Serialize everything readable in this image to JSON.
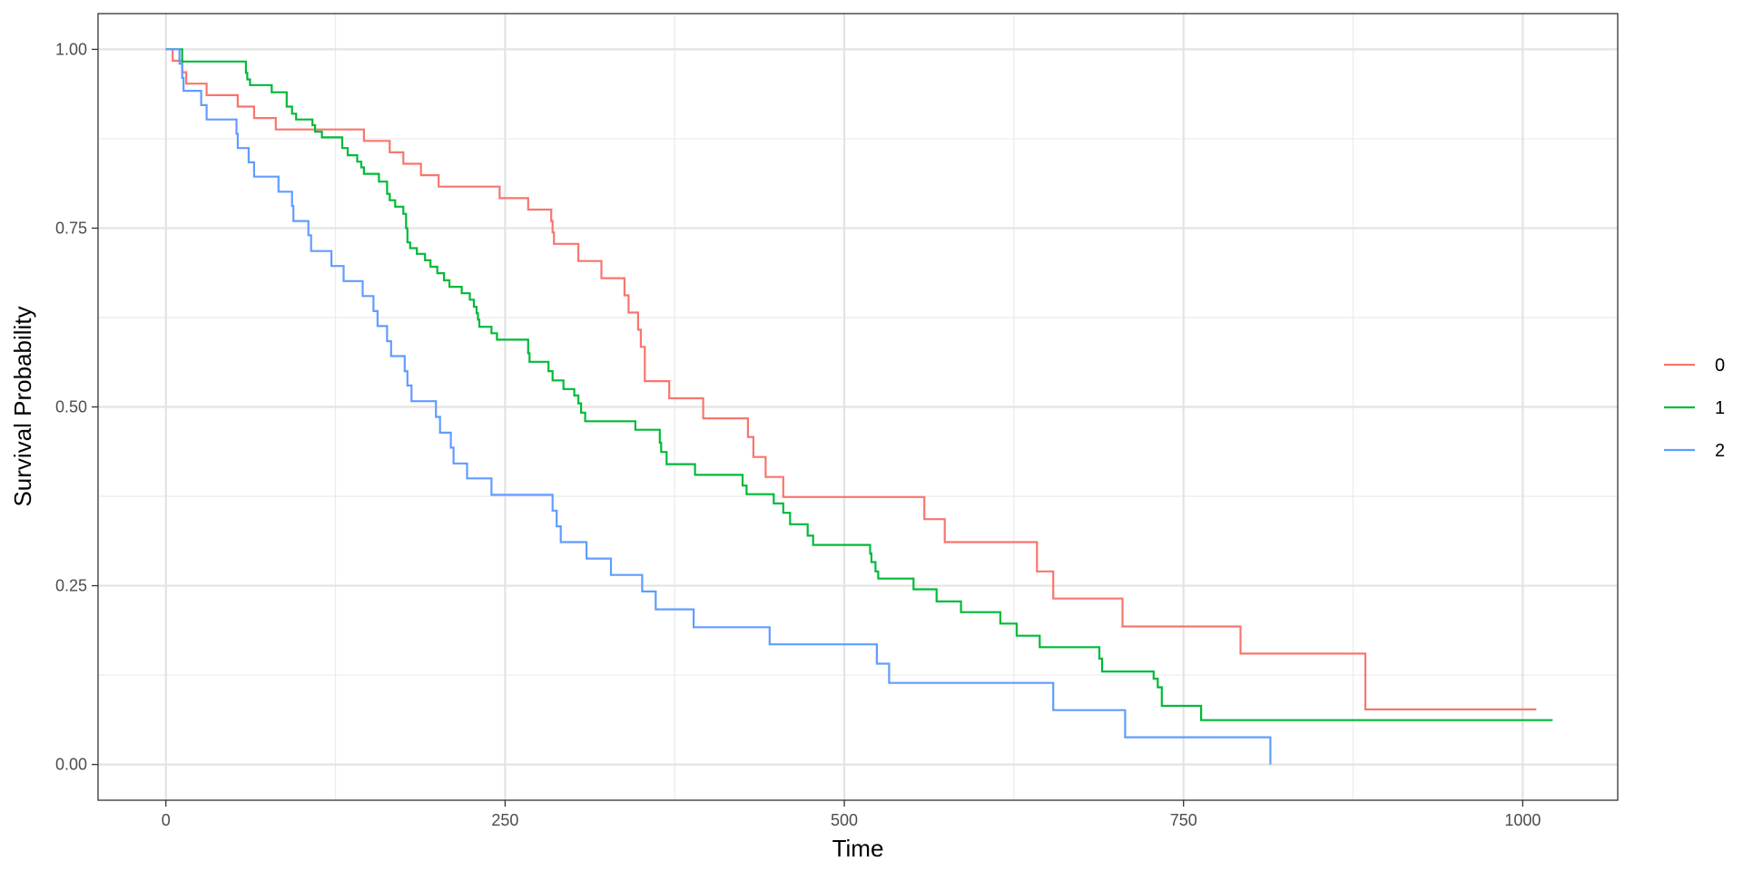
{
  "chart_data": {
    "type": "line",
    "subtype": "step",
    "title": "",
    "xlabel": "Time",
    "ylabel": "Survival Probability",
    "xlim": [
      -50,
      1070
    ],
    "ylim": [
      -0.05,
      1.05
    ],
    "x_ticks": [
      0,
      250,
      500,
      750,
      1000
    ],
    "x_tick_labels": [
      "0",
      "250",
      "500",
      "750",
      "1000"
    ],
    "y_ticks": [
      0,
      0.25,
      0.5,
      0.75,
      1
    ],
    "y_tick_labels": [
      "0.00",
      "0.25",
      "0.50",
      "0.75",
      "1.00"
    ],
    "grid": true,
    "legend_position": "right",
    "series": [
      {
        "name": "0",
        "color": "#F8766D",
        "points": [
          [
            0,
            1.0
          ],
          [
            5,
            0.984
          ],
          [
            12,
            0.968
          ],
          [
            15,
            0.952
          ],
          [
            30,
            0.936
          ],
          [
            53,
            0.92
          ],
          [
            65,
            0.904
          ],
          [
            81,
            0.888
          ],
          [
            146,
            0.872
          ],
          [
            165,
            0.856
          ],
          [
            175,
            0.84
          ],
          [
            188,
            0.824
          ],
          [
            201,
            0.808
          ],
          [
            246,
            0.792
          ],
          [
            267,
            0.776
          ],
          [
            284,
            0.76
          ],
          [
            285,
            0.744
          ],
          [
            286,
            0.728
          ],
          [
            304,
            0.704
          ],
          [
            321,
            0.68
          ],
          [
            338,
            0.656
          ],
          [
            341,
            0.632
          ],
          [
            348,
            0.608
          ],
          [
            350,
            0.584
          ],
          [
            353,
            0.536
          ],
          [
            371,
            0.512
          ],
          [
            396,
            0.484
          ],
          [
            429,
            0.458
          ],
          [
            433,
            0.43
          ],
          [
            442,
            0.402
          ],
          [
            455,
            0.374
          ],
          [
            559,
            0.343
          ],
          [
            574,
            0.311
          ],
          [
            642,
            0.27
          ],
          [
            654,
            0.232
          ],
          [
            705,
            0.193
          ],
          [
            792,
            0.155
          ],
          [
            884,
            0.077
          ],
          [
            1010,
            0.077
          ]
        ]
      },
      {
        "name": "1",
        "color": "#00BA38",
        "points": [
          [
            0,
            1.0
          ],
          [
            12,
            0.983
          ],
          [
            59,
            0.967
          ],
          [
            60,
            0.958
          ],
          [
            62,
            0.95
          ],
          [
            78,
            0.94
          ],
          [
            89,
            0.92
          ],
          [
            93,
            0.91
          ],
          [
            96,
            0.902
          ],
          [
            108,
            0.894
          ],
          [
            110,
            0.885
          ],
          [
            115,
            0.877
          ],
          [
            130,
            0.862
          ],
          [
            134,
            0.852
          ],
          [
            141,
            0.843
          ],
          [
            144,
            0.835
          ],
          [
            146,
            0.826
          ],
          [
            157,
            0.815
          ],
          [
            163,
            0.798
          ],
          [
            165,
            0.789
          ],
          [
            169,
            0.78
          ],
          [
            175,
            0.77
          ],
          [
            177,
            0.75
          ],
          [
            178,
            0.73
          ],
          [
            180,
            0.722
          ],
          [
            185,
            0.714
          ],
          [
            191,
            0.705
          ],
          [
            195,
            0.696
          ],
          [
            200,
            0.687
          ],
          [
            205,
            0.677
          ],
          [
            209,
            0.668
          ],
          [
            218,
            0.659
          ],
          [
            224,
            0.65
          ],
          [
            227,
            0.64
          ],
          [
            229,
            0.631
          ],
          [
            230,
            0.622
          ],
          [
            231,
            0.612
          ],
          [
            240,
            0.603
          ],
          [
            244,
            0.594
          ],
          [
            267,
            0.575
          ],
          [
            268,
            0.563
          ],
          [
            282,
            0.55
          ],
          [
            285,
            0.537
          ],
          [
            293,
            0.525
          ],
          [
            301,
            0.516
          ],
          [
            304,
            0.505
          ],
          [
            306,
            0.492
          ],
          [
            309,
            0.48
          ],
          [
            346,
            0.468
          ],
          [
            364,
            0.45
          ],
          [
            365,
            0.437
          ],
          [
            369,
            0.42
          ],
          [
            390,
            0.405
          ],
          [
            425,
            0.39
          ],
          [
            428,
            0.378
          ],
          [
            448,
            0.365
          ],
          [
            455,
            0.352
          ],
          [
            460,
            0.336
          ],
          [
            473,
            0.32
          ],
          [
            477,
            0.307
          ],
          [
            519,
            0.295
          ],
          [
            520,
            0.283
          ],
          [
            523,
            0.27
          ],
          [
            525,
            0.26
          ],
          [
            551,
            0.245
          ],
          [
            568,
            0.228
          ],
          [
            586,
            0.213
          ],
          [
            615,
            0.197
          ],
          [
            627,
            0.18
          ],
          [
            644,
            0.164
          ],
          [
            688,
            0.148
          ],
          [
            690,
            0.13
          ],
          [
            728,
            0.12
          ],
          [
            731,
            0.108
          ],
          [
            734,
            0.082
          ],
          [
            763,
            0.062
          ],
          [
            1022,
            0.062
          ]
        ]
      },
      {
        "name": "2",
        "color": "#619CFF",
        "points": [
          [
            0,
            1.0
          ],
          [
            10,
            0.98
          ],
          [
            12,
            0.96
          ],
          [
            13,
            0.942
          ],
          [
            26,
            0.922
          ],
          [
            30,
            0.902
          ],
          [
            52,
            0.882
          ],
          [
            53,
            0.862
          ],
          [
            61,
            0.842
          ],
          [
            65,
            0.822
          ],
          [
            83,
            0.801
          ],
          [
            93,
            0.781
          ],
          [
            94,
            0.76
          ],
          [
            105,
            0.74
          ],
          [
            107,
            0.718
          ],
          [
            122,
            0.697
          ],
          [
            131,
            0.676
          ],
          [
            145,
            0.655
          ],
          [
            153,
            0.634
          ],
          [
            156,
            0.613
          ],
          [
            163,
            0.592
          ],
          [
            166,
            0.571
          ],
          [
            176,
            0.55
          ],
          [
            178,
            0.53
          ],
          [
            181,
            0.508
          ],
          [
            199,
            0.486
          ],
          [
            202,
            0.464
          ],
          [
            210,
            0.443
          ],
          [
            212,
            0.421
          ],
          [
            222,
            0.4
          ],
          [
            240,
            0.377
          ],
          [
            285,
            0.355
          ],
          [
            288,
            0.333
          ],
          [
            291,
            0.311
          ],
          [
            310,
            0.288
          ],
          [
            328,
            0.265
          ],
          [
            351,
            0.242
          ],
          [
            361,
            0.217
          ],
          [
            389,
            0.192
          ],
          [
            445,
            0.168
          ],
          [
            524,
            0.141
          ],
          [
            533,
            0.114
          ],
          [
            654,
            0.076
          ],
          [
            707,
            0.038
          ],
          [
            814,
            0.038
          ],
          [
            814,
            0.0
          ]
        ]
      }
    ]
  }
}
